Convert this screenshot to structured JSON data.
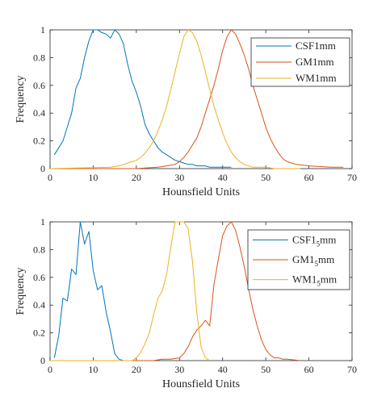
{
  "colors": {
    "axis": "#262626",
    "series": [
      "#0072BD",
      "#D95319",
      "#EDB120"
    ]
  },
  "chart_data": [
    {
      "type": "line",
      "xlabel": "Hounsfield Units",
      "ylabel": "Frequency",
      "xlim": [
        0,
        70
      ],
      "ylim": [
        0,
        1
      ],
      "xticks": [
        "0",
        "10",
        "20",
        "30",
        "40",
        "50",
        "60",
        "70"
      ],
      "yticks": [
        "0",
        "0.2",
        "0.4",
        "0.6",
        "0.8",
        "1"
      ],
      "grid": false,
      "legend_position": "top-right",
      "series": [
        {
          "name": "CSF1mm",
          "x": [
            1,
            2,
            3,
            4,
            5,
            6,
            7,
            8,
            9,
            10,
            11,
            12,
            13,
            14,
            15,
            16,
            17,
            18,
            19,
            20,
            21,
            22,
            23,
            24,
            25,
            26,
            27,
            28,
            29,
            30,
            31,
            32,
            33,
            34,
            35,
            36,
            37,
            38,
            39,
            40,
            41,
            42
          ],
          "y": [
            0.1,
            0.15,
            0.2,
            0.3,
            0.4,
            0.58,
            0.65,
            0.8,
            0.92,
            1.0,
            1.0,
            0.98,
            0.97,
            0.94,
            1.0,
            0.97,
            0.9,
            0.75,
            0.63,
            0.55,
            0.45,
            0.32,
            0.25,
            0.2,
            0.15,
            0.12,
            0.1,
            0.08,
            0.06,
            0.05,
            0.04,
            0.03,
            0.03,
            0.02,
            0.02,
            0.02,
            0.01,
            0.01,
            0.01,
            0.01,
            0.01,
            0.01
          ]
        },
        {
          "name": "GM1mm",
          "x": [
            0,
            20,
            25,
            27,
            29,
            30,
            31,
            32,
            33,
            34,
            35,
            36,
            37,
            38,
            39,
            40,
            41,
            42,
            43,
            44,
            45,
            46,
            47,
            48,
            49,
            50,
            51,
            52,
            53,
            54,
            55,
            57,
            60,
            65,
            68
          ],
          "y": [
            0,
            0,
            0.01,
            0.02,
            0.03,
            0.05,
            0.08,
            0.12,
            0.17,
            0.22,
            0.3,
            0.4,
            0.5,
            0.6,
            0.72,
            0.85,
            0.95,
            1.0,
            0.97,
            0.9,
            0.82,
            0.72,
            0.6,
            0.5,
            0.4,
            0.3,
            0.22,
            0.16,
            0.11,
            0.07,
            0.05,
            0.03,
            0.02,
            0.01,
            0.01
          ]
        },
        {
          "name": "WM1mm",
          "x": [
            0,
            14,
            16,
            18,
            20,
            21,
            22,
            23,
            24,
            25,
            26,
            27,
            28,
            29,
            30,
            31,
            32,
            33,
            34,
            35,
            36,
            37,
            38,
            39,
            40,
            41,
            42,
            43,
            44,
            45,
            46,
            47,
            48,
            50,
            52,
            55,
            58
          ],
          "y": [
            0,
            0.01,
            0.02,
            0.04,
            0.06,
            0.08,
            0.11,
            0.15,
            0.2,
            0.27,
            0.35,
            0.45,
            0.57,
            0.7,
            0.83,
            0.95,
            1.0,
            0.98,
            0.92,
            0.82,
            0.7,
            0.57,
            0.45,
            0.35,
            0.26,
            0.18,
            0.12,
            0.08,
            0.05,
            0.03,
            0.02,
            0.01,
            0.01,
            0.01,
            0.0,
            0.0,
            0.0
          ]
        }
      ]
    },
    {
      "type": "line",
      "xlabel": "Hounsfield Units",
      "ylabel": "Frequency",
      "xlim": [
        0,
        70
      ],
      "ylim": [
        0,
        1
      ],
      "xticks": [
        "0",
        "10",
        "20",
        "30",
        "40",
        "50",
        "60",
        "70"
      ],
      "yticks": [
        "0",
        "0.2",
        "0.4",
        "0.6",
        "0.8",
        "1"
      ],
      "grid": false,
      "legend_position": "top-right",
      "series": [
        {
          "name": "CSF1",
          "name_subscript": "5",
          "name_suffix": "mm",
          "x": [
            1,
            2,
            3,
            4,
            5,
            6,
            7,
            8,
            9,
            10,
            11,
            12,
            13,
            14,
            15,
            16,
            17
          ],
          "y": [
            0.02,
            0.18,
            0.45,
            0.43,
            0.66,
            0.62,
            1.0,
            0.84,
            0.93,
            0.65,
            0.51,
            0.54,
            0.35,
            0.21,
            0.05,
            0.01,
            0.0
          ]
        },
        {
          "name": "GM1",
          "name_subscript": "5",
          "name_suffix": "mm",
          "x": [
            0,
            24,
            26,
            28,
            30,
            31,
            32,
            33,
            34,
            35,
            36,
            37,
            38,
            39,
            40,
            41,
            42,
            43,
            44,
            45,
            46,
            47,
            48,
            49,
            50,
            51,
            52,
            53,
            54,
            55,
            58
          ],
          "y": [
            0,
            0,
            0.01,
            0.01,
            0.02,
            0.05,
            0.1,
            0.17,
            0.22,
            0.25,
            0.29,
            0.25,
            0.55,
            0.73,
            0.9,
            0.97,
            1.0,
            0.94,
            0.82,
            0.68,
            0.52,
            0.37,
            0.25,
            0.15,
            0.08,
            0.04,
            0.02,
            0.02,
            0.01,
            0.01,
            0.0
          ]
        },
        {
          "name": "WM1",
          "name_subscript": "5",
          "name_suffix": "mm",
          "x": [
            0,
            19,
            20,
            21,
            22,
            23,
            24,
            25,
            26,
            27,
            28,
            29,
            30,
            31,
            32,
            33,
            34,
            35,
            36,
            37
          ],
          "y": [
            0,
            0.0,
            0.02,
            0.06,
            0.12,
            0.2,
            0.33,
            0.45,
            0.5,
            0.62,
            0.82,
            1.0,
            1.0,
            1.0,
            0.95,
            0.72,
            0.35,
            0.1,
            0.02,
            0.0
          ]
        }
      ]
    }
  ]
}
